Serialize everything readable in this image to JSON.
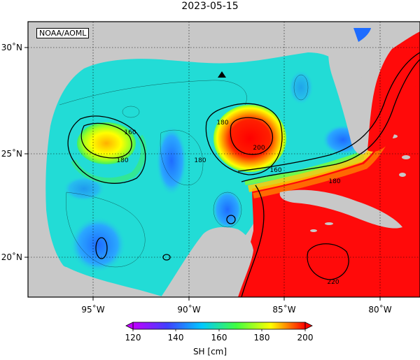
{
  "title": "2023-05-15",
  "credit": "NOAA/AOML",
  "x_ticks": [
    "95˚W",
    "90˚W",
    "85˚W",
    "80˚W"
  ],
  "y_ticks": [
    "30˚N",
    "25˚N",
    "20˚N"
  ],
  "colorbar": {
    "ticks": [
      "120",
      "140",
      "160",
      "180",
      "200"
    ],
    "unit_label": "SH [cm]",
    "colors": [
      "#c000ff",
      "#4040ff",
      "#00c8ff",
      "#40ff40",
      "#ffff00",
      "#ff0000"
    ]
  },
  "contour_labels": [
    "160",
    "180",
    "180",
    "180",
    "200",
    "160",
    "180",
    "220"
  ],
  "colors": {
    "land": "#c8c8c8",
    "ocean_base": "#22dcd6",
    "loop_current": "#ff0a0a"
  },
  "marker_icon": "triangle-marker-icon"
}
